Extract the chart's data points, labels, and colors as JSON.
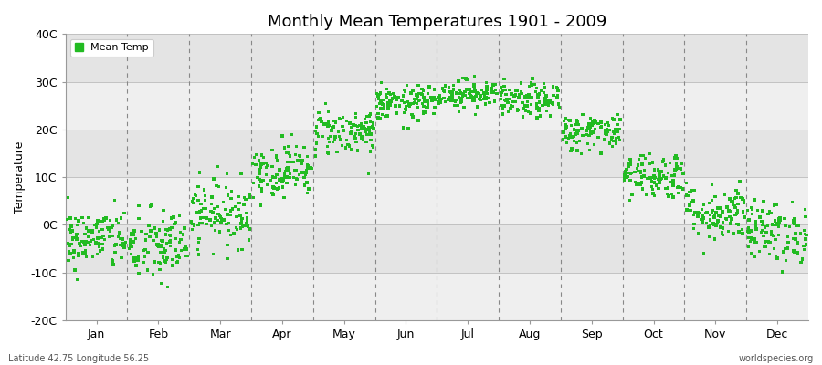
{
  "title": "Monthly Mean Temperatures 1901 - 2009",
  "ylabel": "Temperature",
  "xlabel_labels": [
    "Jan",
    "Feb",
    "Mar",
    "Apr",
    "May",
    "Jun",
    "Jul",
    "Aug",
    "Sep",
    "Oct",
    "Nov",
    "Dec"
  ],
  "ytick_labels": [
    "-20C",
    "-10C",
    "0C",
    "10C",
    "20C",
    "30C",
    "40C"
  ],
  "ytick_values": [
    -20,
    -10,
    0,
    10,
    20,
    30,
    40
  ],
  "ylim": [
    -20,
    40
  ],
  "dot_color": "#22bb22",
  "dot_size": 6,
  "bg_color": "#ffffff",
  "plot_bg_light": "#efefef",
  "plot_bg_dark": "#e4e4e4",
  "grid_color": "#bbbbbb",
  "dashed_color": "#888888",
  "subtitle_left": "Latitude 42.75 Longitude 56.25",
  "subtitle_right": "worldspecies.org",
  "legend_label": "Mean Temp",
  "n_years": 109,
  "monthly_means": [
    -3.0,
    -4.5,
    2.5,
    11.5,
    19.5,
    25.5,
    27.5,
    26.0,
    19.5,
    10.5,
    2.5,
    -1.5
  ],
  "monthly_stds": [
    3.2,
    4.0,
    3.5,
    2.8,
    2.5,
    1.8,
    1.5,
    1.8,
    2.0,
    2.5,
    3.0,
    3.2
  ]
}
